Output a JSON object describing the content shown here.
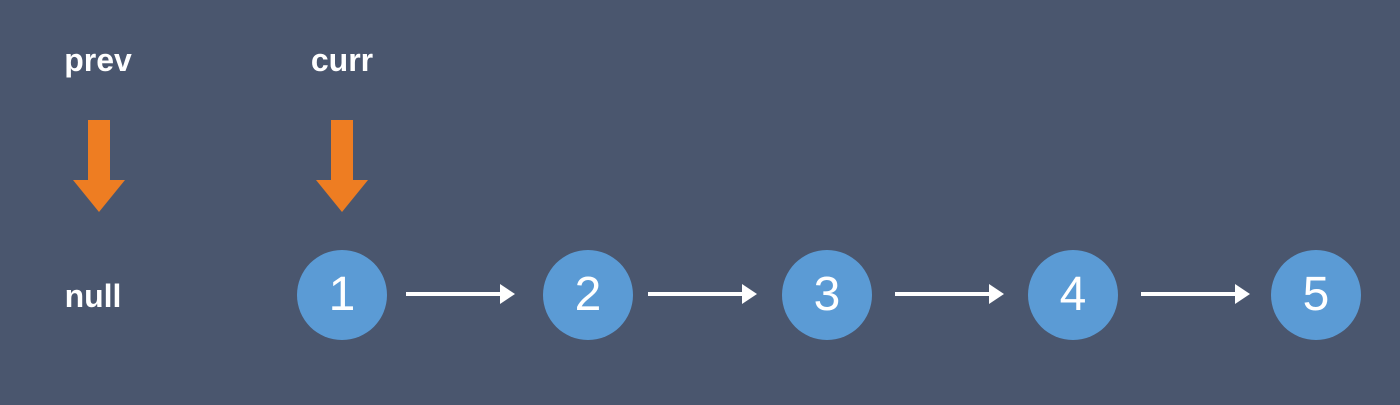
{
  "pointers": {
    "prev_label": "prev",
    "curr_label": "curr"
  },
  "null_label": "null",
  "nodes": [
    "1",
    "2",
    "3",
    "4",
    "5"
  ],
  "colors": {
    "background": "#4a566e",
    "node_fill": "#5b9bd5",
    "pointer_arrow": "#ee7d22",
    "text": "#ffffff",
    "link_arrow": "#ffffff"
  },
  "icons": {
    "pointer_arrow": "down-arrow-icon",
    "link_arrow": "right-arrow-icon"
  }
}
